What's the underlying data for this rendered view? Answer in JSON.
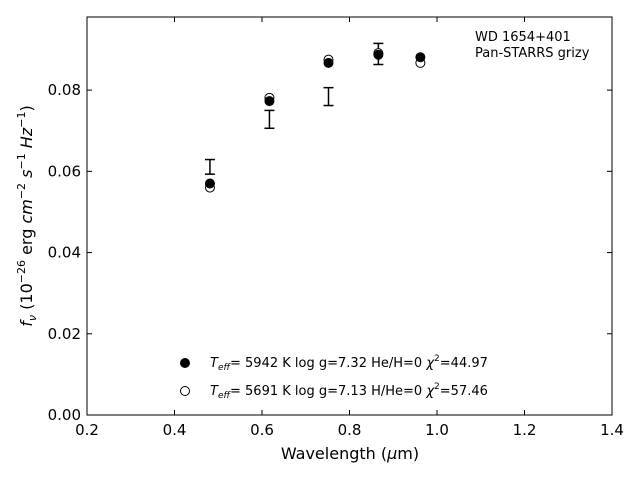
{
  "chart_data": {
    "type": "scatter",
    "xlabel": "Wavelength (μm)",
    "ylabel": "f_ν (10^-26 erg cm^-2 s^-1 Hz^-1)",
    "xlim": [
      0.2,
      1.4
    ],
    "ylim": [
      0.0,
      0.098
    ],
    "x_ticks": [
      0.2,
      0.4,
      0.6,
      0.8,
      1.0,
      1.2,
      1.4
    ],
    "y_ticks": [
      0.0,
      0.02,
      0.04,
      0.06,
      0.08
    ],
    "x_tick_labels": [
      "0.2",
      "0.4",
      "0.6",
      "0.8",
      "1.0",
      "1.2",
      "1.4"
    ],
    "y_tick_labels": [
      "0.00",
      "0.02",
      "0.04",
      "0.06",
      "0.08"
    ],
    "annotations": [
      "WD 1654+401",
      "Pan-STARRS grizy"
    ],
    "legend_placement": "lower-center",
    "grid": false,
    "observed": {
      "x": [
        0.481,
        0.617,
        0.752,
        0.866,
        0.962
      ],
      "y": [
        0.0611,
        0.0728,
        0.0784,
        0.0889,
        0.0885
      ],
      "yerr": [
        0.0018,
        0.0022,
        0.0022,
        0.0026,
        0.0
      ]
    },
    "series": [
      {
        "name": "T_eff= 5942 K log g=7.32 He/H=0 χ²=44.97",
        "marker": "filled-circle",
        "x": [
          0.481,
          0.617,
          0.752,
          0.866,
          0.962
        ],
        "y": [
          0.057,
          0.0773,
          0.0867,
          0.0887,
          0.0881
        ]
      },
      {
        "name": "T_eff= 5691 K log g=7.13 H/He=0 χ²=57.46",
        "marker": "open-circle",
        "x": [
          0.481,
          0.617,
          0.752,
          0.866,
          0.962
        ],
        "y": [
          0.056,
          0.0781,
          0.0875,
          0.0891,
          0.0867
        ]
      }
    ]
  },
  "legend": {
    "row1": {
      "teff": "5942 K",
      "logg": "log g=7.32",
      "comp": "He/H=0",
      "chi": "=44.97"
    },
    "row2": {
      "teff": "5691 K",
      "logg": "log g=7.13",
      "comp": "H/He=0",
      "chi": "=57.46"
    }
  }
}
